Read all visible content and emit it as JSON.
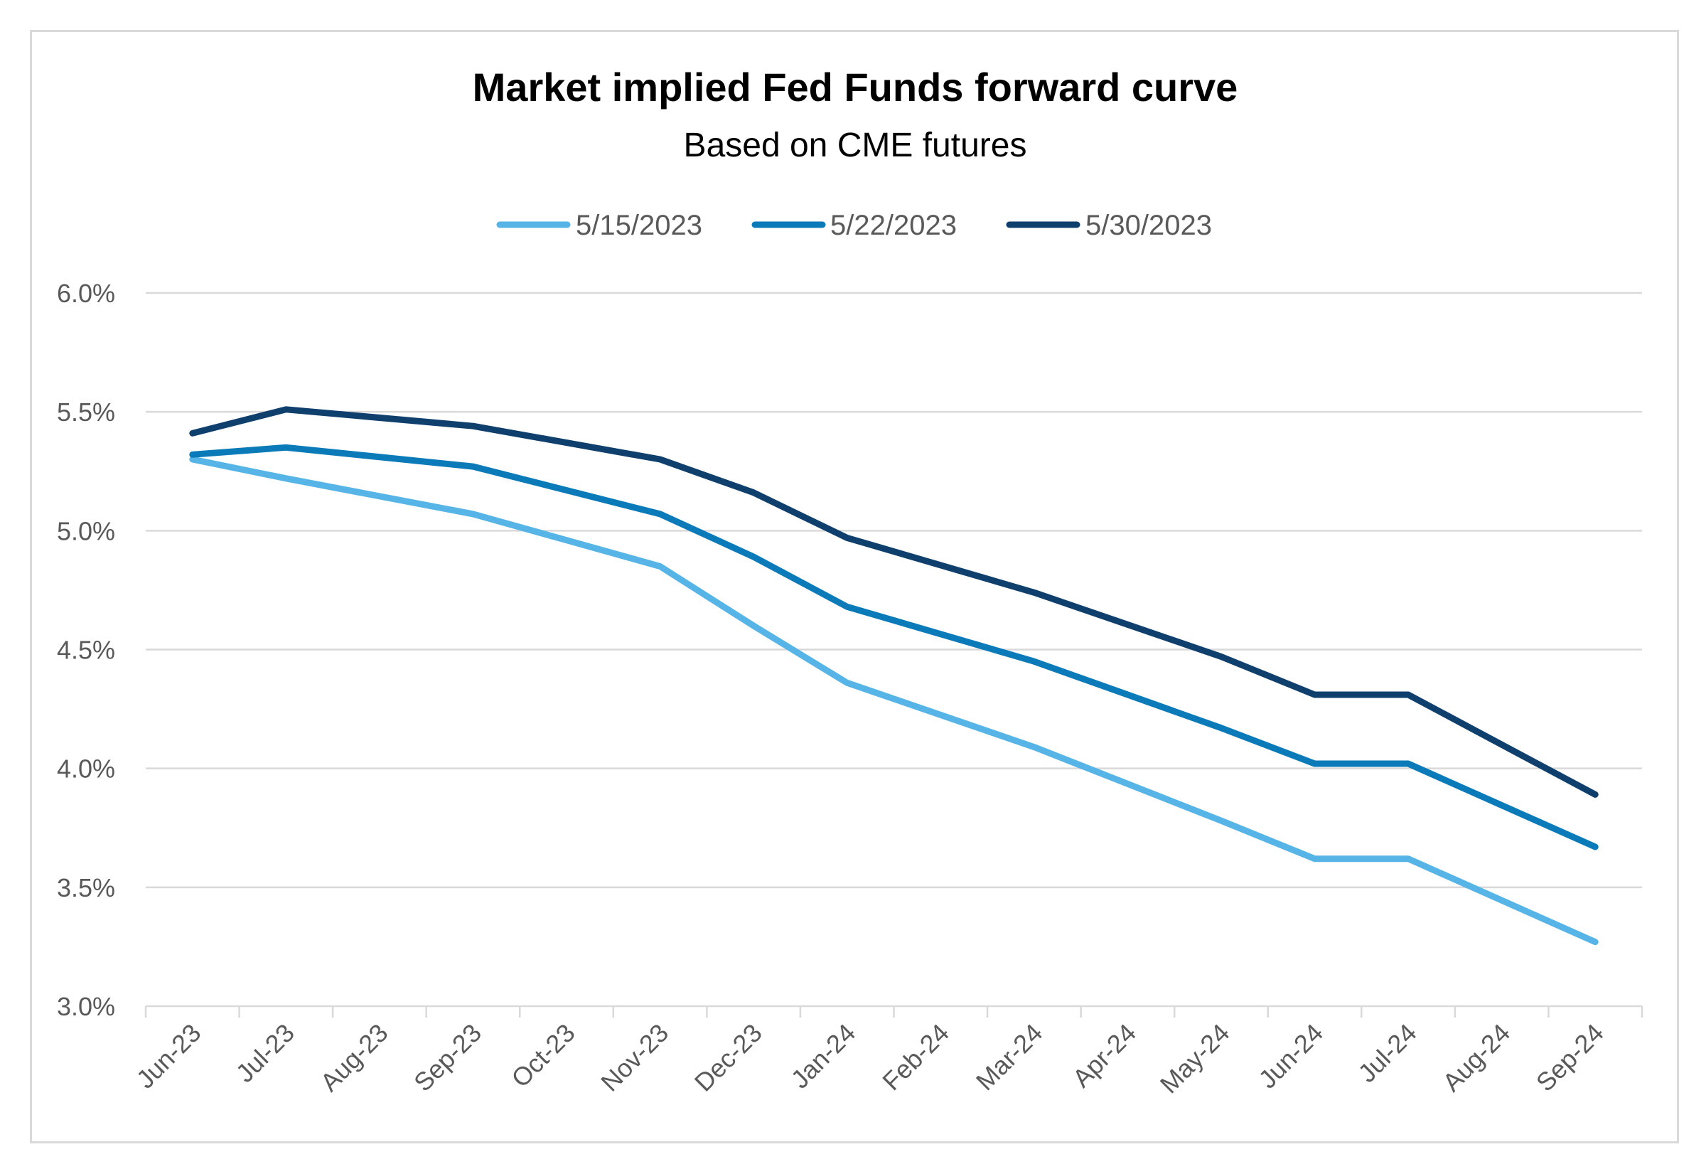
{
  "chart_data": {
    "type": "line",
    "title": "Market implied Fed Funds forward curve",
    "subtitle": "Based on CME futures",
    "xlabel": "",
    "ylabel": "",
    "categories": [
      "Jun-23",
      "Jul-23",
      "Aug-23",
      "Sep-23",
      "Oct-23",
      "Nov-23",
      "Dec-23",
      "Jan-24",
      "Feb-24",
      "Mar-24",
      "Apr-24",
      "May-24",
      "Jun-24",
      "Jul-24",
      "Aug-24",
      "Sep-24"
    ],
    "yticks": [
      "3.0%",
      "3.5%",
      "4.0%",
      "4.5%",
      "5.0%",
      "5.5%",
      "6.0%"
    ],
    "ylim": [
      3.0,
      6.0
    ],
    "grid": "horizontal",
    "legend_position": "top",
    "series": [
      {
        "name": "5/15/2023",
        "color": "#56b4e6",
        "points": [
          {
            "x": 0,
            "y": 5.3
          },
          {
            "x": 1,
            "y": 5.22
          },
          {
            "x": 3,
            "y": 5.07
          },
          {
            "x": 5,
            "y": 4.85
          },
          {
            "x": 6,
            "y": 4.6
          },
          {
            "x": 7,
            "y": 4.36
          },
          {
            "x": 9,
            "y": 4.09
          },
          {
            "x": 11,
            "y": 3.78
          },
          {
            "x": 12,
            "y": 3.62
          },
          {
            "x": 13,
            "y": 3.62
          },
          {
            "x": 15,
            "y": 3.27
          }
        ]
      },
      {
        "name": "5/22/2023",
        "color": "#0b7ab8",
        "points": [
          {
            "x": 0,
            "y": 5.32
          },
          {
            "x": 1,
            "y": 5.35
          },
          {
            "x": 3,
            "y": 5.27
          },
          {
            "x": 5,
            "y": 5.07
          },
          {
            "x": 6,
            "y": 4.89
          },
          {
            "x": 7,
            "y": 4.68
          },
          {
            "x": 9,
            "y": 4.45
          },
          {
            "x": 11,
            "y": 4.17
          },
          {
            "x": 12,
            "y": 4.02
          },
          {
            "x": 13,
            "y": 4.02
          },
          {
            "x": 15,
            "y": 3.67
          }
        ]
      },
      {
        "name": "5/30/2023",
        "color": "#0e3f6d",
        "points": [
          {
            "x": 0,
            "y": 5.41
          },
          {
            "x": 1,
            "y": 5.51
          },
          {
            "x": 3,
            "y": 5.44
          },
          {
            "x": 5,
            "y": 5.3
          },
          {
            "x": 6,
            "y": 5.16
          },
          {
            "x": 7,
            "y": 4.97
          },
          {
            "x": 9,
            "y": 4.74
          },
          {
            "x": 11,
            "y": 4.47
          },
          {
            "x": 12,
            "y": 4.31
          },
          {
            "x": 13,
            "y": 4.31
          },
          {
            "x": 15,
            "y": 3.89
          }
        ]
      }
    ],
    "style": {
      "gridline_color": "#d9d9d9",
      "axis_color": "#d9d9d9",
      "text_color": "#595959"
    }
  }
}
